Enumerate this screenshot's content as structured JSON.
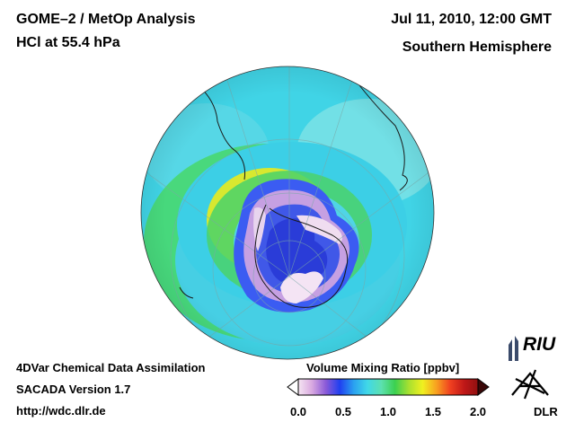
{
  "header": {
    "title": "GOME–2 / MetOp Analysis",
    "species": "HCl at 55.4 hPa",
    "datetime": "Jul 11, 2010, 12:00 GMT",
    "region": "Southern Hemisphere"
  },
  "footer": {
    "method": "4DVar Chemical Data Assimilation",
    "version": "SACADA Version 1.7",
    "url": "http://wdc.dlr.de"
  },
  "colorbar": {
    "title": "Volume Mixing Ratio [ppbv]",
    "ticks": [
      "0.0",
      "0.5",
      "1.0",
      "1.5",
      "2.0"
    ],
    "tick_values": [
      0.0,
      0.5,
      1.0,
      1.5,
      2.0
    ],
    "range": [
      0.0,
      2.0
    ],
    "colors": [
      "#f6e6f2",
      "#d8a8e0",
      "#8a5ad8",
      "#2040f0",
      "#2aa0f0",
      "#40d8e8",
      "#5ce0b0",
      "#3cd050",
      "#a8e030",
      "#f0f020",
      "#f8a020",
      "#f04020",
      "#c01818",
      "#901010"
    ]
  },
  "logos": {
    "riu": "RIU",
    "dlr": "DLR"
  },
  "map": {
    "projection": "orthographic, South Pole",
    "field_colors": {
      "high": "#c9e8d8",
      "mid": "#3cd0e8",
      "low": "#2040f0",
      "min": "#f6e6f6",
      "band": "#a8e030",
      "green": "#40d850"
    }
  }
}
